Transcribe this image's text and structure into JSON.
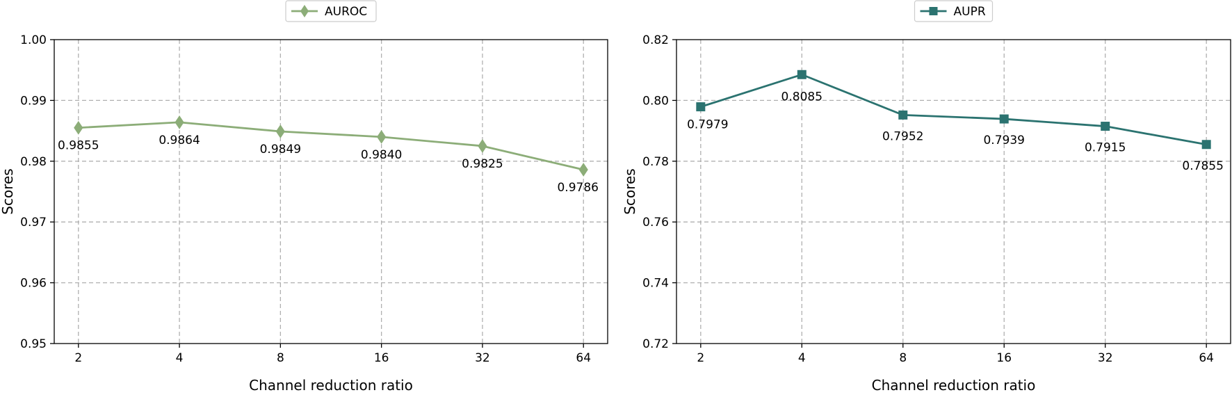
{
  "chart_data": [
    {
      "type": "line",
      "categories": [
        "2",
        "4",
        "8",
        "16",
        "32",
        "64"
      ],
      "series": [
        {
          "name": "AUROC",
          "values": [
            0.9855,
            0.9864,
            0.9849,
            0.984,
            0.9825,
            0.9786
          ]
        }
      ],
      "data_labels": [
        "0.9855",
        "0.9864",
        "0.9849",
        "0.9840",
        "0.9825",
        "0.9786"
      ],
      "xlabel": "Channel reduction ratio",
      "ylabel": "Scores",
      "ylim": [
        0.95,
        1.0
      ],
      "yticks": [
        "0.95",
        "0.96",
        "0.97",
        "0.98",
        "0.99",
        "1.00"
      ],
      "grid": true,
      "legend_position": "top-center",
      "color": "#8cad78",
      "marker": "diamond"
    },
    {
      "type": "line",
      "categories": [
        "2",
        "4",
        "8",
        "16",
        "32",
        "64"
      ],
      "series": [
        {
          "name": "AUPR",
          "values": [
            0.7979,
            0.8085,
            0.7952,
            0.7939,
            0.7915,
            0.7855
          ]
        }
      ],
      "data_labels": [
        "0.7979",
        "0.8085",
        "0.7952",
        "0.7939",
        "0.7915",
        "0.7855"
      ],
      "xlabel": "Channel reduction ratio",
      "ylabel": "Scores",
      "ylim": [
        0.72,
        0.82
      ],
      "yticks": [
        "0.72",
        "0.74",
        "0.76",
        "0.78",
        "0.80",
        "0.82"
      ],
      "grid": true,
      "legend_position": "top-center",
      "color": "#2b7370",
      "marker": "square"
    }
  ]
}
